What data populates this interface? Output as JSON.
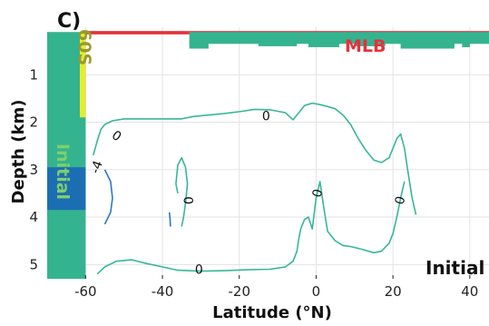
{
  "chart_data": {
    "type": "line",
    "panel_label": "C)",
    "xlabel": "Latitude (°N)",
    "ylabel": "Depth (km)",
    "xlim": [
      -70,
      45
    ],
    "ylim": [
      5.3,
      0.0
    ],
    "y_inverted": true,
    "x_ticks": [
      -60,
      -40,
      -20,
      0,
      20,
      40
    ],
    "y_ticks": [
      1,
      2,
      3,
      4,
      5
    ],
    "grid": true,
    "colors": {
      "land": "#34b38f",
      "contour": "#38b69a",
      "contour_blue": "#2f77c0",
      "mlb": "#e8303a",
      "tag_60s": "#e7ec2f",
      "tag_60s_text": "#9a9a2c",
      "tag_initial": "#1c6eb3",
      "tag_initial_text": "#7fcf6a",
      "right_tag_text": "#111111"
    },
    "annotations": {
      "mlb": "MLB",
      "sixty_s": "60S",
      "initial_left": "Initial",
      "initial_right": "Initial"
    },
    "contour_labels": [
      "0",
      "0",
      "-4",
      "0",
      "0",
      "0",
      "0"
    ],
    "series": [
      {
        "type": "contour",
        "color": "contour",
        "x": [
          -58,
          -57,
          -56,
          -55,
          -53,
          -50,
          -46,
          -40,
          -35,
          -32,
          -28,
          -24,
          -20,
          -16,
          -12,
          -8,
          -6,
          -4,
          -3,
          -1,
          1,
          3,
          5,
          7,
          9,
          11,
          13,
          15,
          17,
          19,
          21,
          22,
          23,
          24,
          25,
          26
        ],
        "y": [
          2.7,
          2.4,
          2.15,
          2.05,
          1.97,
          1.93,
          1.93,
          1.93,
          1.93,
          1.88,
          1.85,
          1.82,
          1.78,
          1.73,
          1.74,
          1.8,
          1.95,
          1.75,
          1.65,
          1.6,
          1.63,
          1.67,
          1.72,
          1.85,
          2.05,
          2.35,
          2.6,
          2.8,
          2.85,
          2.75,
          2.35,
          2.25,
          2.55,
          3.1,
          3.6,
          3.95
        ]
      },
      {
        "type": "contour",
        "color": "contour",
        "x": [
          -57,
          -55,
          -52,
          -48,
          -44,
          -40,
          -36,
          -30,
          -24,
          -18,
          -12,
          -8,
          -6,
          -5,
          -4.5,
          -4,
          -3,
          -2,
          -1,
          0,
          1,
          2,
          3,
          5,
          7,
          9,
          12,
          15,
          17,
          19,
          20,
          21,
          22,
          23
        ],
        "y": [
          5.2,
          5.05,
          4.93,
          4.9,
          4.98,
          5.05,
          5.12,
          5.14,
          5.13,
          5.11,
          5.1,
          5.05,
          4.93,
          4.72,
          4.45,
          4.25,
          4.05,
          4.0,
          4.25,
          3.6,
          3.25,
          3.8,
          4.3,
          4.5,
          4.6,
          4.62,
          4.68,
          4.75,
          4.72,
          4.55,
          4.35,
          4.0,
          3.6,
          3.25
        ]
      },
      {
        "type": "contour",
        "color": "contour",
        "x": [
          -35,
          -34.5,
          -34,
          -33.5,
          -34,
          -35,
          -36,
          -36.5,
          -36
        ],
        "y": [
          4.2,
          4.0,
          3.7,
          3.3,
          2.95,
          2.75,
          2.9,
          3.3,
          3.5
        ]
      },
      {
        "type": "contour",
        "color": "contour_blue",
        "x": [
          -55,
          -53.5,
          -53,
          -53.5,
          -55
        ],
        "y": [
          3.0,
          3.25,
          3.6,
          3.9,
          4.15
        ]
      },
      {
        "type": "contour",
        "color": "contour_blue",
        "x": [
          -38.2,
          -38.0,
          -37.9
        ],
        "y": [
          3.9,
          4.05,
          4.2
        ]
      }
    ],
    "shaded_regions": [
      {
        "name": "MLB",
        "x": [
          -60,
          45
        ],
        "y": [
          0.08,
          0.15
        ],
        "color": "mlb"
      },
      {
        "name": "land-left",
        "x": [
          -70,
          -60
        ],
        "y": [
          0.1,
          5.3
        ],
        "color": "land"
      },
      {
        "name": "land-top",
        "x": [
          -33,
          45
        ],
        "y": [
          0.1,
          0.35
        ],
        "color": "land"
      },
      {
        "name": "60S-tag",
        "x": [
          -61.5,
          -60
        ],
        "y": [
          0.1,
          1.9
        ],
        "color": "tag_60s"
      },
      {
        "name": "initial-tag",
        "x": [
          -70,
          -60
        ],
        "y": [
          2.95,
          3.85
        ],
        "color": "tag_initial"
      }
    ]
  }
}
